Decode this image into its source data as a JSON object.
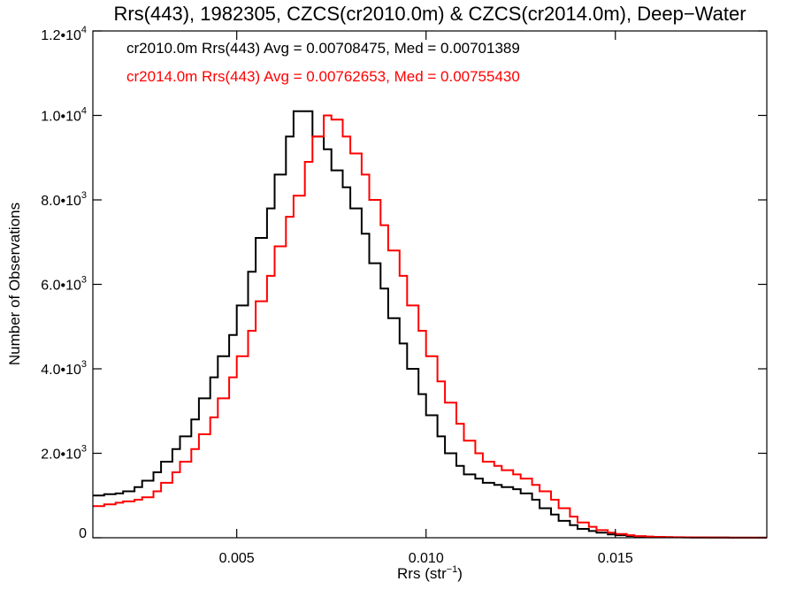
{
  "chart_data": {
    "type": "line",
    "title": "Rrs(443), 1982305, CZCS(cr2010.0m) & CZCS(cr2014.0m), Deep−Water",
    "xlabel": "Rrs (str",
    "xlabel_sup": "−1",
    "xlabel_end": ")",
    "ylabel": "Number of Observations",
    "xlim": [
      0.0012,
      0.019
    ],
    "ylim": [
      0,
      12000
    ],
    "x_ticks": [
      {
        "value": 0.005,
        "label": "0.005"
      },
      {
        "value": 0.01,
        "label": "0.010"
      },
      {
        "value": 0.015,
        "label": "0.015"
      }
    ],
    "y_ticks": [
      {
        "value": 0,
        "label": "0",
        "sup": ""
      },
      {
        "value": 2000,
        "label": "2.0•10",
        "sup": "3"
      },
      {
        "value": 4000,
        "label": "4.0•10",
        "sup": "3"
      },
      {
        "value": 6000,
        "label": "6.0•10",
        "sup": "3"
      },
      {
        "value": 8000,
        "label": "8.0•10",
        "sup": "3"
      },
      {
        "value": 10000,
        "label": "1.0•10",
        "sup": "4"
      },
      {
        "value": 12000,
        "label": "1.2•10",
        "sup": "4"
      }
    ],
    "grid": false,
    "legend_position": "top-left",
    "series": [
      {
        "name": "cr2010.0m Rrs(443) Avg = 0.00708475, Med = 0.00701389",
        "color": "#000000",
        "x": [
          0.0012,
          0.0015,
          0.0018,
          0.002,
          0.0023,
          0.0025,
          0.0028,
          0.003,
          0.0033,
          0.0035,
          0.0038,
          0.004,
          0.0043,
          0.0045,
          0.0048,
          0.005,
          0.0053,
          0.0055,
          0.0058,
          0.006,
          0.0063,
          0.0065,
          0.0068,
          0.007,
          0.0073,
          0.0075,
          0.0078,
          0.008,
          0.0083,
          0.0085,
          0.0088,
          0.009,
          0.0093,
          0.0095,
          0.0098,
          0.01,
          0.0103,
          0.0105,
          0.0108,
          0.011,
          0.0113,
          0.0115,
          0.0118,
          0.012,
          0.0123,
          0.0125,
          0.0128,
          0.013,
          0.0133,
          0.0135,
          0.0138,
          0.014,
          0.0143,
          0.0145,
          0.0148,
          0.015,
          0.0153,
          0.0155,
          0.0158,
          0.016,
          0.0163,
          0.0165,
          0.0168,
          0.017,
          0.0175,
          0.018,
          0.0185,
          0.019
        ],
        "y": [
          1000,
          1030,
          1050,
          1100,
          1200,
          1350,
          1550,
          1800,
          2100,
          2400,
          2800,
          3300,
          3800,
          4300,
          4800,
          5500,
          6300,
          7100,
          7800,
          8600,
          9500,
          10100,
          10100,
          9500,
          9200,
          8700,
          8300,
          7800,
          7200,
          6500,
          5900,
          5200,
          4600,
          4000,
          3400,
          2900,
          2400,
          2000,
          1700,
          1500,
          1400,
          1300,
          1250,
          1200,
          1150,
          1050,
          900,
          700,
          550,
          400,
          300,
          210,
          160,
          120,
          80,
          60,
          40,
          30,
          20,
          15,
          12,
          10,
          8,
          6,
          4,
          3,
          2,
          2
        ]
      },
      {
        "name": "cr2014.0m Rrs(443) Avg = 0.00762653, Med = 0.00755430",
        "color": "#ff0000",
        "x": [
          0.0012,
          0.0015,
          0.0018,
          0.002,
          0.0023,
          0.0025,
          0.0028,
          0.003,
          0.0033,
          0.0035,
          0.0038,
          0.004,
          0.0043,
          0.0045,
          0.0048,
          0.005,
          0.0053,
          0.0055,
          0.0058,
          0.006,
          0.0063,
          0.0065,
          0.0068,
          0.007,
          0.0073,
          0.0075,
          0.0078,
          0.008,
          0.0083,
          0.0085,
          0.0088,
          0.009,
          0.0093,
          0.0095,
          0.0098,
          0.01,
          0.0103,
          0.0105,
          0.0108,
          0.011,
          0.0113,
          0.0115,
          0.0118,
          0.012,
          0.0123,
          0.0125,
          0.0128,
          0.013,
          0.0133,
          0.0135,
          0.0138,
          0.014,
          0.0143,
          0.0145,
          0.0148,
          0.015,
          0.0153,
          0.0155,
          0.0158,
          0.016,
          0.0163,
          0.0165,
          0.0168,
          0.017,
          0.0175,
          0.018,
          0.0185,
          0.019
        ],
        "y": [
          750,
          790,
          830,
          860,
          900,
          960,
          1100,
          1300,
          1550,
          1800,
          2100,
          2450,
          2850,
          3300,
          3800,
          4300,
          4900,
          5600,
          6200,
          6900,
          7600,
          8100,
          8900,
          9500,
          10000,
          9900,
          9500,
          9100,
          8600,
          8000,
          7400,
          6800,
          6200,
          5500,
          4900,
          4300,
          3700,
          3200,
          2700,
          2300,
          2000,
          1800,
          1700,
          1600,
          1500,
          1400,
          1250,
          1100,
          900,
          700,
          500,
          360,
          260,
          180,
          120,
          90,
          60,
          40,
          30,
          20,
          15,
          12,
          10,
          8,
          5,
          3,
          2,
          2
        ]
      }
    ]
  }
}
